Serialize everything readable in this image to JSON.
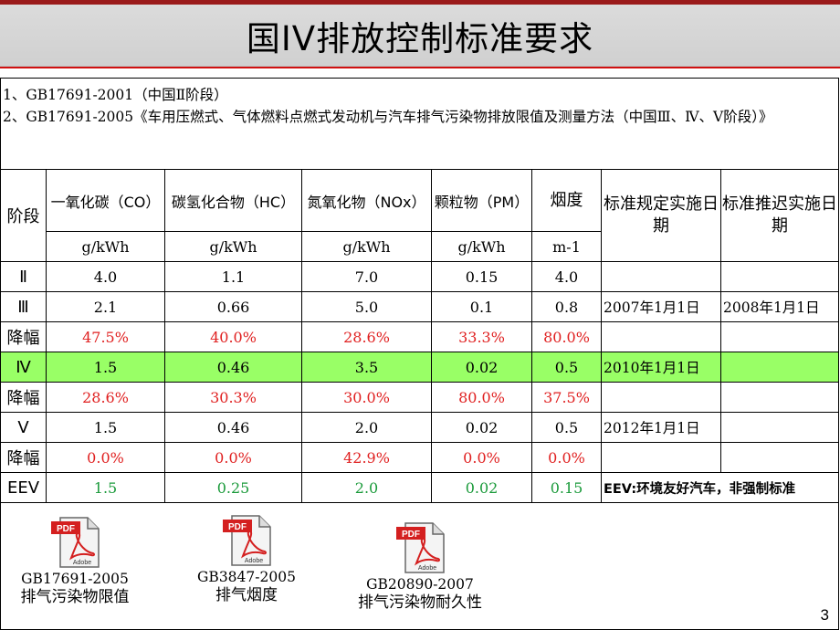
{
  "title": "国IV排放控制标准要求",
  "intro": {
    "line1": "1、GB17691-2001（中国Ⅱ阶段）",
    "line2": "2、GB17691-2005《车用压燃式、气体燃料点燃式发动机与汽车排气污染物排放限值及测量方法（中国Ⅲ、Ⅳ、Ⅴ阶段）》"
  },
  "table": {
    "header": {
      "stage": "阶段",
      "co": "一氧化碳（CO）",
      "hc": "碳氢化合物（HC）",
      "nox": "氮氧化物（NOx）",
      "pm": "颗粒物（PM）",
      "smoke": "烟度",
      "std_date": "标准规定实施日期",
      "delay_date": "标准推迟实施日期"
    },
    "units": {
      "co": "g/kWh",
      "hc": "g/kWh",
      "nox": "g/kWh",
      "pm": "g/kWh",
      "smoke": "m-1"
    },
    "rows": [
      {
        "stage": "Ⅱ",
        "co": "4.0",
        "hc": "1.1",
        "nox": "7.0",
        "pm": "0.15",
        "smoke": "4.0",
        "std_date": "",
        "delay_date": ""
      },
      {
        "stage": "Ⅲ",
        "co": "2.1",
        "hc": "0.66",
        "nox": "5.0",
        "pm": "0.1",
        "smoke": "0.8",
        "std_date": "2007年1月1日",
        "delay_date": "2008年1月1日"
      },
      {
        "stage": "降幅",
        "co": "47.5%",
        "hc": "40.0%",
        "nox": "28.6%",
        "pm": "33.3%",
        "smoke": "80.0%",
        "std_date": "",
        "delay_date": ""
      },
      {
        "stage": "Ⅳ",
        "co": "1.5",
        "hc": "0.46",
        "nox": "3.5",
        "pm": "0.02",
        "smoke": "0.5",
        "std_date": "2010年1月1日",
        "delay_date": ""
      },
      {
        "stage": "降幅",
        "co": "28.6%",
        "hc": "30.3%",
        "nox": "30.0%",
        "pm": "80.0%",
        "smoke": "37.5%",
        "std_date": "",
        "delay_date": ""
      },
      {
        "stage": "Ⅴ",
        "co": "1.5",
        "hc": "0.46",
        "nox": "2.0",
        "pm": "0.02",
        "smoke": "0.5",
        "std_date": "2012年1月1日",
        "delay_date": ""
      },
      {
        "stage": "降幅",
        "co": "0.0%",
        "hc": "0.0%",
        "nox": "42.9%",
        "pm": "0.0%",
        "smoke": "0.0%",
        "std_date": "",
        "delay_date": ""
      },
      {
        "stage": "EEV",
        "co": "1.5",
        "hc": "0.25",
        "nox": "2.0",
        "pm": "0.02",
        "smoke": "0.15",
        "note": "EEV:环境友好汽车，非强制标准"
      }
    ]
  },
  "attachments": [
    {
      "icon": "pdf-file-icon",
      "badge": "PDF",
      "brand": "Adobe",
      "name": "GB17691-2005",
      "desc": "排气污染物限值"
    },
    {
      "icon": "pdf-file-icon",
      "badge": "PDF",
      "brand": "Adobe",
      "name": "GB3847-2005",
      "desc": "排气烟度"
    },
    {
      "icon": "pdf-file-icon",
      "badge": "PDF",
      "brand": "Adobe",
      "name": "GB20890-2007",
      "desc": "排气污染物耐久性"
    }
  ],
  "page_number": "3",
  "colors": {
    "title_bar_top": "#9a1a1a",
    "rule": "#d01010",
    "reduction_red": "#e02020",
    "eev_green": "#1a9a3a",
    "highlight_row": "#99ff66"
  }
}
